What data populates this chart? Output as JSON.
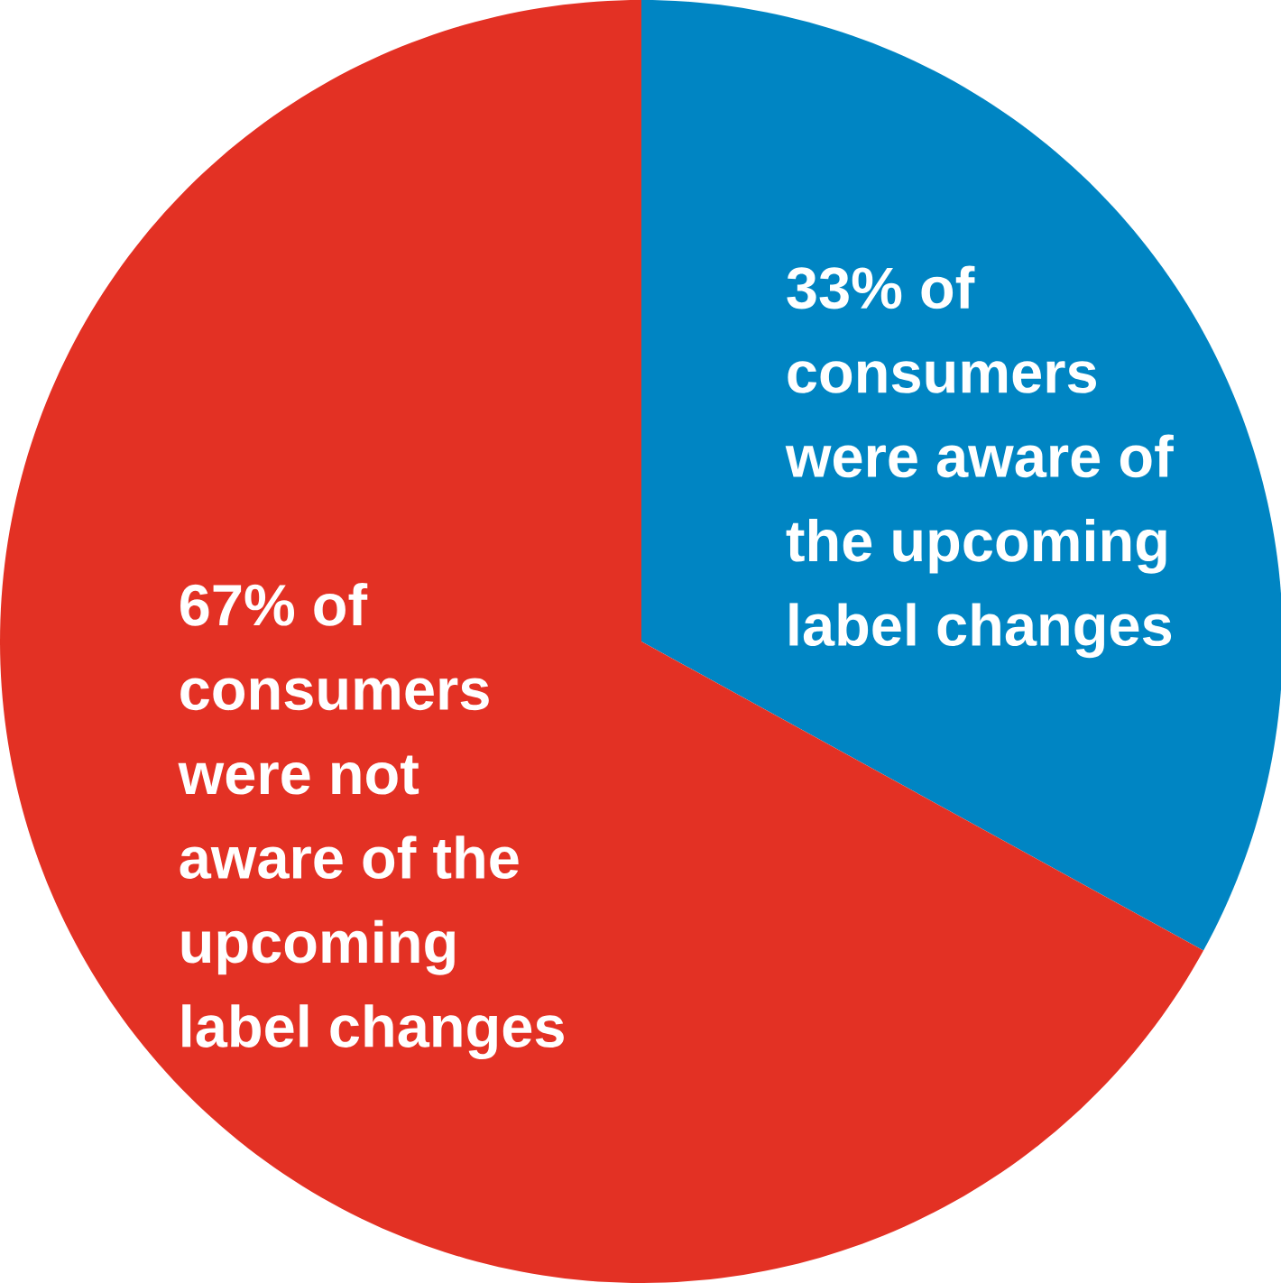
{
  "chart_data": {
    "type": "pie",
    "categories": [
      "33% of consumers were aware of the upcoming label changes",
      "67% of consumers were not aware of the upcoming label changes"
    ],
    "values": [
      33,
      67
    ],
    "colors": [
      "#0085c3",
      "#e33124"
    ]
  }
}
